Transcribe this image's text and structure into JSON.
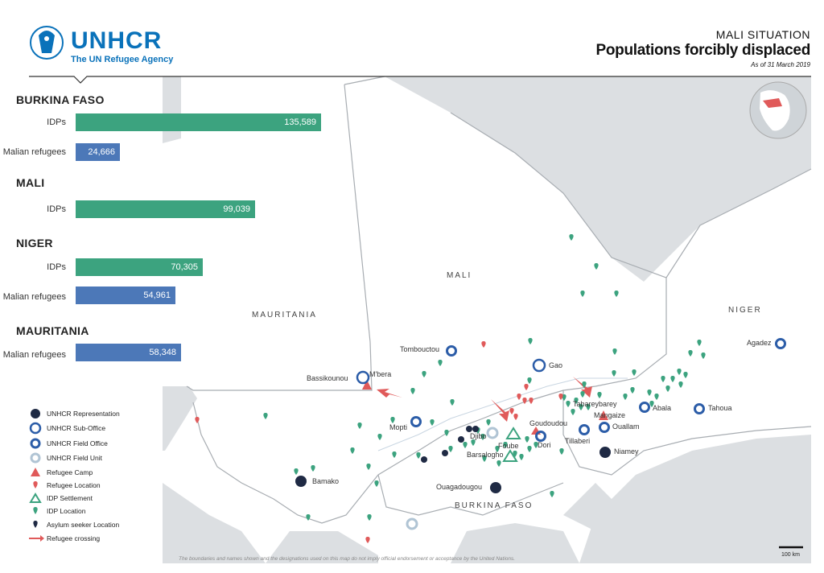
{
  "header": {
    "logo_name": "UNHCR",
    "logo_tagline": "The UN Refugee Agency",
    "supertitle": "MALI SITUATION",
    "title": "Populations forcibly displaced",
    "date": "As of 31 March 2019"
  },
  "stats": [
    {
      "country": "BURKINA FASO",
      "rows": [
        {
          "label": "IDPs",
          "value": 135589,
          "display": "135,589",
          "kind": "idp"
        },
        {
          "label": "Malian refugees",
          "value": 24666,
          "display": "24,666",
          "kind": "refugee"
        }
      ]
    },
    {
      "country": "MALI",
      "rows": [
        {
          "label": "IDPs",
          "value": 99039,
          "display": "99,039",
          "kind": "idp"
        }
      ]
    },
    {
      "country": "NIGER",
      "rows": [
        {
          "label": "IDPs",
          "value": 70305,
          "display": "70,305",
          "kind": "idp"
        },
        {
          "label": "Malian refugees",
          "value": 54961,
          "display": "54,961",
          "kind": "refugee"
        }
      ]
    },
    {
      "country": "MAURITANIA",
      "rows": [
        {
          "label": "Malian refugees",
          "value": 58348,
          "display": "58,348",
          "kind": "refugee"
        }
      ]
    }
  ],
  "colors": {
    "idp": "#3ca37f",
    "refugee": "#4c78b8",
    "refugee_red": "#e05a5a",
    "unhcr_blue": "#0a72ba",
    "dark_navy": "#1f2a44",
    "land_gray": "#dcdfe2",
    "border": "#b8bcc0"
  },
  "countries": {
    "mali": "MALI",
    "mauritania": "MAURITANIA",
    "niger": "NIGER",
    "burkina": "BURKINA FASO"
  },
  "places": {
    "tombouctou": "Tombouctou",
    "gao": "Gao",
    "bassikounou": "Bassikounou",
    "mbera": "M'bera",
    "agadez": "Agadez",
    "tahoua": "Tahoua",
    "abala": "Abala",
    "tabareybarey": "Tabareybarey",
    "mangaize": "Mangaize",
    "ouallam": "Ouallam",
    "tillaberi": "Tillaberi",
    "niamey": "Niamey",
    "mopti": "Mopti",
    "djibo": "Djibo",
    "goudoudou": "Goudoudou",
    "foube": "Foube",
    "dori": "Dori",
    "barsalogho": "Barsalogho",
    "ouagadougou": "Ouagadougou",
    "bamako": "Bamako"
  },
  "legend": [
    {
      "icon": "unhcr-representation-icon",
      "label": "UNHCR Representation"
    },
    {
      "icon": "unhcr-sub-office-icon",
      "label": "UNHCR Sub-Office"
    },
    {
      "icon": "unhcr-field-office-icon",
      "label": "UNHCR Field Office"
    },
    {
      "icon": "unhcr-field-unit-icon",
      "label": "UNHCR Field Unit"
    },
    {
      "icon": "refugee-camp-icon",
      "label": "Refugee Camp"
    },
    {
      "icon": "refugee-location-icon",
      "label": "Refugee Location"
    },
    {
      "icon": "idp-settlement-icon",
      "label": "IDP Settlement"
    },
    {
      "icon": "idp-location-icon",
      "label": "IDP Location"
    },
    {
      "icon": "asylum-seeker-location-icon",
      "label": "Asylum seeker Location"
    },
    {
      "icon": "refugee-crossing-icon",
      "label": "Refugee crossing"
    }
  ],
  "footer": {
    "disclaimer": "The boundaries and names shown and the designations used on this map do not imply official endorsement or acceptance by the United Nations.",
    "scale": "100 km"
  }
}
